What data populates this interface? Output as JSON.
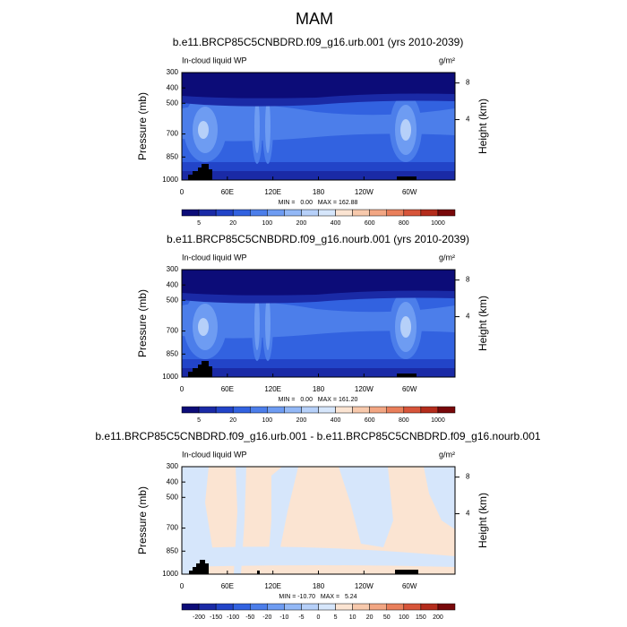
{
  "title": "MAM",
  "chart_data": [
    {
      "type": "contour",
      "title": "b.e11.BRCP85C5CNBDRD.f09_g16.urb.001 (yrs 2010-2039)",
      "variable": "In-cloud liquid WP",
      "units": "g/m²",
      "ylabel": "Pressure (mb)",
      "y2label": "Height (km)",
      "xlim": [
        0,
        360
      ],
      "xticks": [
        0,
        {
          "value": 60,
          "label": "60E"
        },
        {
          "value": 120,
          "label": "120E"
        },
        180,
        {
          "value": 240,
          "label": "120W"
        },
        {
          "value": 300,
          "label": "60W"
        }
      ],
      "ylim": [
        1000,
        300
      ],
      "yticks": [
        300,
        400,
        500,
        700,
        850,
        1000
      ],
      "y2ticks": [
        4,
        8
      ],
      "stats": "MIN =   0.00   MAX = 162.88",
      "colorbar": {
        "colors": [
          "#0c0c78",
          "#1a2aa6",
          "#2244c8",
          "#3262e0",
          "#4c7eea",
          "#6e9cf2",
          "#93b8f6",
          "#b6d0f9",
          "#d6e6fb",
          "#fbe4d2",
          "#f7c9ac",
          "#f2a683",
          "#e97f5b",
          "#d7553a",
          "#b42c1c",
          "#78080a"
        ],
        "labels": [
          5,
          20,
          100,
          200,
          400,
          600,
          800,
          1000
        ]
      }
    },
    {
      "type": "contour",
      "title": "b.e11.BRCP85C5CNBDRD.f09_g16.nourb.001 (yrs 2010-2039)",
      "variable": "In-cloud liquid WP",
      "units": "g/m²",
      "ylabel": "Pressure (mb)",
      "y2label": "Height (km)",
      "xlim": [
        0,
        360
      ],
      "xticks": [
        0,
        {
          "value": 60,
          "label": "60E"
        },
        {
          "value": 120,
          "label": "120E"
        },
        180,
        {
          "value": 240,
          "label": "120W"
        },
        {
          "value": 300,
          "label": "60W"
        }
      ],
      "ylim": [
        1000,
        300
      ],
      "yticks": [
        300,
        400,
        500,
        700,
        850,
        1000
      ],
      "y2ticks": [
        4,
        8
      ],
      "stats": "MIN =   0.00   MAX = 161.20",
      "colorbar": {
        "colors": [
          "#0c0c78",
          "#1a2aa6",
          "#2244c8",
          "#3262e0",
          "#4c7eea",
          "#6e9cf2",
          "#93b8f6",
          "#b6d0f9",
          "#d6e6fb",
          "#fbe4d2",
          "#f7c9ac",
          "#f2a683",
          "#e97f5b",
          "#d7553a",
          "#b42c1c",
          "#78080a"
        ],
        "labels": [
          5,
          20,
          100,
          200,
          400,
          600,
          800,
          1000
        ]
      }
    },
    {
      "type": "contour-diff",
      "title": "b.e11.BRCP85C5CNBDRD.f09_g16.urb.001 - b.e11.BRCP85C5CNBDRD.f09_g16.nourb.001",
      "variable": "In-cloud liquid WP",
      "units": "g/m²",
      "ylabel": "Pressure (mb)",
      "y2label": "Height (km)",
      "xlim": [
        0,
        360
      ],
      "xticks": [
        0,
        {
          "value": 60,
          "label": "60E"
        },
        {
          "value": 120,
          "label": "120E"
        },
        180,
        {
          "value": 240,
          "label": "120W"
        },
        {
          "value": 300,
          "label": "60W"
        }
      ],
      "ylim": [
        1000,
        300
      ],
      "yticks": [
        300,
        400,
        500,
        700,
        850,
        1000
      ],
      "y2ticks": [
        4,
        8
      ],
      "stats": "MIN = -10.70   MAX =   5.24",
      "colorbar": {
        "colors": [
          "#0c0c78",
          "#1a2aa6",
          "#2244c8",
          "#3262e0",
          "#4c7eea",
          "#6e9cf2",
          "#93b8f6",
          "#b6d0f9",
          "#d6e6fb",
          "#fbe4d2",
          "#f7c9ac",
          "#f2a683",
          "#e97f5b",
          "#d7553a",
          "#b42c1c",
          "#78080a"
        ],
        "labels": [
          -200,
          -150,
          -100,
          -50,
          -20,
          -10,
          -5,
          0,
          5,
          10,
          20,
          50,
          100,
          150,
          200
        ]
      }
    }
  ]
}
